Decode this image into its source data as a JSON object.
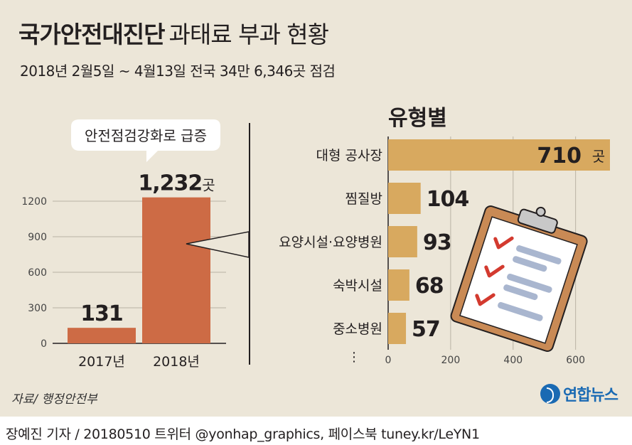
{
  "title": {
    "main": "국가안전대진단",
    "sub": "과태료 부과 현황"
  },
  "subtitle": "2018년 2월5일 ~ 4월13일 전국 34만 6,346곳 점검",
  "source": "자료/ 행정안전부",
  "credit": "장예진 기자 / 20180510 트위터 @yonhap_graphics, 페이스북 tuney.kr/LeYN1",
  "logo": "연합뉴스",
  "colors": {
    "background": "#ece6d8",
    "left_bar": "#cd6b45",
    "right_bar": "#d8a95f",
    "text": "#231f20"
  },
  "chart_data": [
    {
      "type": "bar",
      "categories": [
        "2017년",
        "2018년"
      ],
      "values": [
        131,
        1232
      ],
      "value_labels": [
        "131",
        "1,232"
      ],
      "value_unit": "곳",
      "ylim": [
        0,
        1350
      ],
      "yticks": [
        0,
        300,
        600,
        900,
        1200
      ],
      "callout": "안전점검강화로 급증",
      "grid": true
    },
    {
      "type": "bar",
      "orientation": "horizontal",
      "title": "유형별",
      "categories": [
        "대형 공사장",
        "찜질방",
        "요양시설·요양병원",
        "숙박시설",
        "중소병원"
      ],
      "values": [
        710,
        104,
        93,
        68,
        57
      ],
      "value_unit": "곳",
      "more_marker": "⋮",
      "xlim": [
        0,
        710
      ],
      "xticks": [
        0,
        200,
        400,
        600
      ],
      "grid": true
    }
  ],
  "icons": [
    "clipboard-checklist-icon",
    "yonhap-logo-icon"
  ]
}
